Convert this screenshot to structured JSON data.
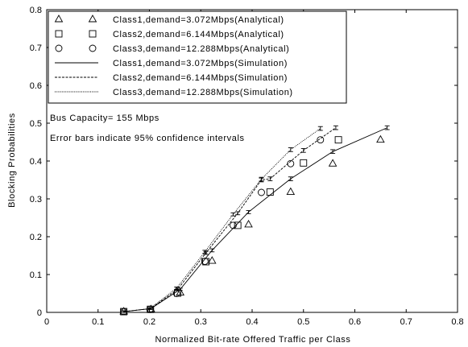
{
  "chart_data": {
    "type": "line",
    "title": "",
    "xlabel": "Normalized Bit-rate Offered Traffic per Class",
    "ylabel": "Blocking Probabilities",
    "xlim": [
      0,
      0.8
    ],
    "ylim": [
      0,
      0.8
    ],
    "xticks": [
      "0",
      "0.1",
      "0.2",
      "0.3",
      "0.4",
      "0.5",
      "0.6",
      "0.7",
      "0.8"
    ],
    "yticks": [
      "0",
      "0.1",
      "0.2",
      "0.3",
      "0.4",
      "0.5",
      "0.6",
      "0.7",
      "0.8"
    ],
    "grid": false,
    "legend_position": "top-left",
    "annotations": [
      "Bus Capacity= 155 Mbps",
      "Error bars indicate 95% confidence intervals"
    ],
    "series": [
      {
        "name": "Class1,demand=3.072Mbps(Analytical)",
        "style": "marker",
        "marker": "triangle",
        "x": [
          0.15,
          0.203,
          0.26,
          0.322,
          0.393,
          0.475,
          0.557,
          0.65
        ],
        "y": [
          0.002,
          0.008,
          0.052,
          0.136,
          0.232,
          0.318,
          0.393,
          0.456
        ]
      },
      {
        "name": "Class2,demand=6.144Mbps(Analytical)",
        "style": "marker",
        "marker": "square",
        "x": [
          0.15,
          0.202,
          0.255,
          0.31,
          0.372,
          0.435,
          0.5,
          0.568
        ],
        "y": [
          0.002,
          0.008,
          0.051,
          0.134,
          0.23,
          0.318,
          0.395,
          0.456
        ]
      },
      {
        "name": "Class3,demand=12.288Mbps(Analytical)",
        "style": "marker",
        "marker": "circle",
        "x": [
          0.15,
          0.201,
          0.253,
          0.308,
          0.363,
          0.418,
          0.475,
          0.533
        ],
        "y": [
          0.002,
          0.008,
          0.05,
          0.135,
          0.23,
          0.317,
          0.393,
          0.456
        ]
      },
      {
        "name": "Class1,demand=3.072Mbps(Simulation)",
        "style": "line",
        "dash": "solid",
        "x": [
          0.15,
          0.203,
          0.26,
          0.322,
          0.393,
          0.475,
          0.557,
          0.663
        ],
        "y": [
          0.002,
          0.01,
          0.061,
          0.164,
          0.265,
          0.353,
          0.425,
          0.488
        ],
        "error": [
          0.002,
          0.002,
          0.003,
          0.004,
          0.004,
          0.005,
          0.005,
          0.005
        ]
      },
      {
        "name": "Class2,demand=6.144Mbps(Simulation)",
        "style": "line",
        "dash": "dashed",
        "x": [
          0.15,
          0.202,
          0.255,
          0.31,
          0.372,
          0.418,
          0.435,
          0.5,
          0.563
        ],
        "y": [
          0.002,
          0.01,
          0.061,
          0.157,
          0.262,
          0.35,
          0.353,
          0.428,
          0.488
        ],
        "error": [
          0.002,
          0.002,
          0.003,
          0.004,
          0.004,
          0.005,
          0.005,
          0.005,
          0.005
        ]
      },
      {
        "name": "Class3,demand=12.288Mbps(Simulation)",
        "style": "line",
        "dash": "dotted",
        "x": [
          0.15,
          0.201,
          0.253,
          0.308,
          0.363,
          0.418,
          0.475,
          0.533
        ],
        "y": [
          0.002,
          0.01,
          0.064,
          0.16,
          0.259,
          0.352,
          0.43,
          0.486
        ],
        "error": [
          0.002,
          0.002,
          0.003,
          0.004,
          0.004,
          0.005,
          0.005,
          0.005
        ]
      }
    ]
  }
}
